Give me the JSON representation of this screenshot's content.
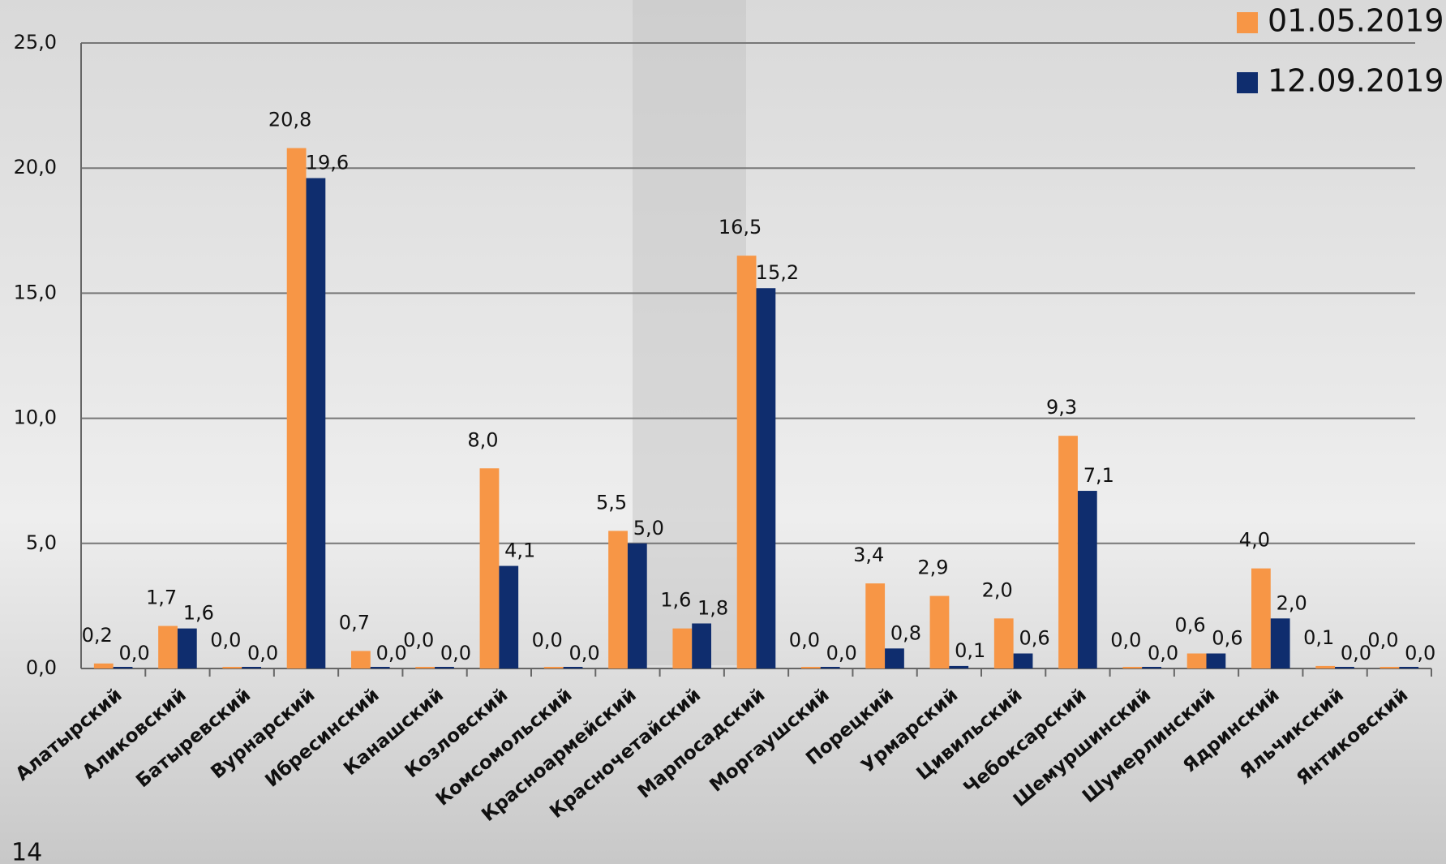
{
  "chart_data": {
    "type": "bar",
    "categories": [
      "Алатырский",
      "Аликовский",
      "Батыревский",
      "Вурнарский",
      "Ибресинский",
      "Канашский",
      "Козловский",
      "Комсомольский",
      "Красноармейский",
      "Красночетайский",
      "Марпосадский",
      "Моргаушский",
      "Порецкий",
      "Урмарский",
      "Цивильский",
      "Чебоксарский",
      "Шемуршинский",
      "Шумерлинский",
      "Ядринский",
      "Яльчикский",
      "Янтиковский"
    ],
    "series": [
      {
        "name": "01.05.2019",
        "color": "#f79646",
        "values": [
          0.2,
          1.7,
          0.0,
          20.8,
          0.7,
          0.0,
          8.0,
          0.0,
          5.5,
          1.6,
          16.5,
          0.0,
          3.4,
          2.9,
          2.0,
          9.3,
          0.0,
          0.6,
          4.0,
          0.1,
          0.0
        ],
        "value_labels": [
          "0,2",
          "1,7",
          "0,0",
          "20,8",
          "0,7",
          "0,0",
          "8,0",
          "0,0",
          "5,5",
          "1,6",
          "16,5",
          "0,0",
          "3,4",
          "2,9",
          "2,0",
          "9,3",
          "0,0",
          "0,6",
          "4,0",
          "0,1",
          "0,0"
        ]
      },
      {
        "name": "12.09.2019",
        "color": "#0f2d6e",
        "values": [
          0.0,
          1.6,
          0.0,
          19.6,
          0.0,
          0.0,
          4.1,
          0.0,
          5.0,
          1.8,
          15.2,
          0.0,
          0.8,
          0.1,
          0.6,
          7.1,
          0.0,
          0.6,
          2.0,
          0.0,
          0.0
        ],
        "value_labels": [
          "0,0",
          "1,6",
          "0,0",
          "19,6",
          "0,0",
          "0,0",
          "4,1",
          "0,0",
          "5,0",
          "1,8",
          "15,2",
          "0,0",
          "0,8",
          "0,1",
          "0,6",
          "7,1",
          "0,0",
          "0,6",
          "2,0",
          "0,0",
          "0,0"
        ]
      }
    ],
    "ylim": [
      0,
      25
    ],
    "yticks": [
      {
        "value": 0,
        "label": "0,0"
      },
      {
        "value": 5,
        "label": "5,0"
      },
      {
        "value": 10,
        "label": "10,0"
      },
      {
        "value": 15,
        "label": "15,0"
      },
      {
        "value": 20,
        "label": "20,0"
      },
      {
        "value": 25,
        "label": "25,0"
      }
    ],
    "grid": true,
    "legend": "top-right"
  },
  "page_number": "14"
}
